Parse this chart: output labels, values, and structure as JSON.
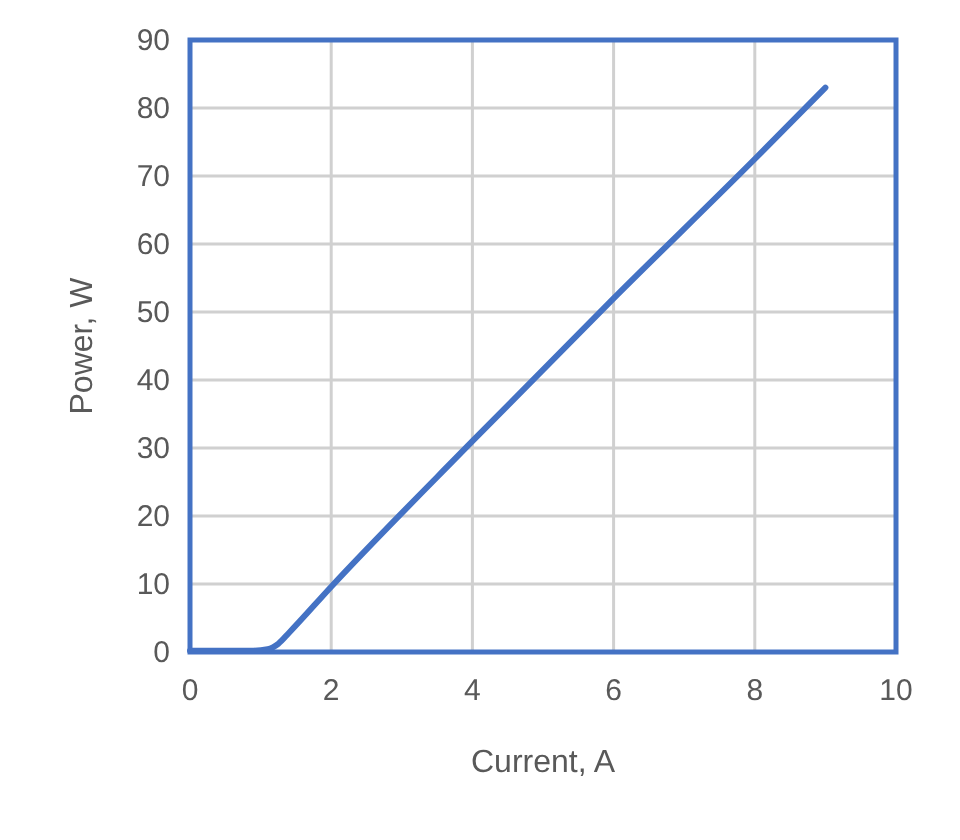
{
  "chart_data": {
    "type": "line",
    "xlabel": "Current, A",
    "ylabel": "Power, W",
    "x": [
      0,
      0.9,
      1.1,
      1.25,
      1.4,
      2,
      4,
      6,
      8,
      9
    ],
    "series": [
      {
        "color": "#4472c4",
        "values": [
          0.2,
          0.2,
          0.4,
          1.2,
          2.8,
          9.6,
          31,
          52,
          72.5,
          83
        ]
      }
    ],
    "xlim": [
      0,
      10
    ],
    "xticks": [
      0,
      2,
      4,
      6,
      8,
      10
    ],
    "ylim": [
      0,
      90
    ],
    "yticks": [
      0,
      10,
      20,
      30,
      40,
      50,
      60,
      70,
      80,
      90
    ],
    "grid": true,
    "marker": "none",
    "line_style": "solid"
  }
}
